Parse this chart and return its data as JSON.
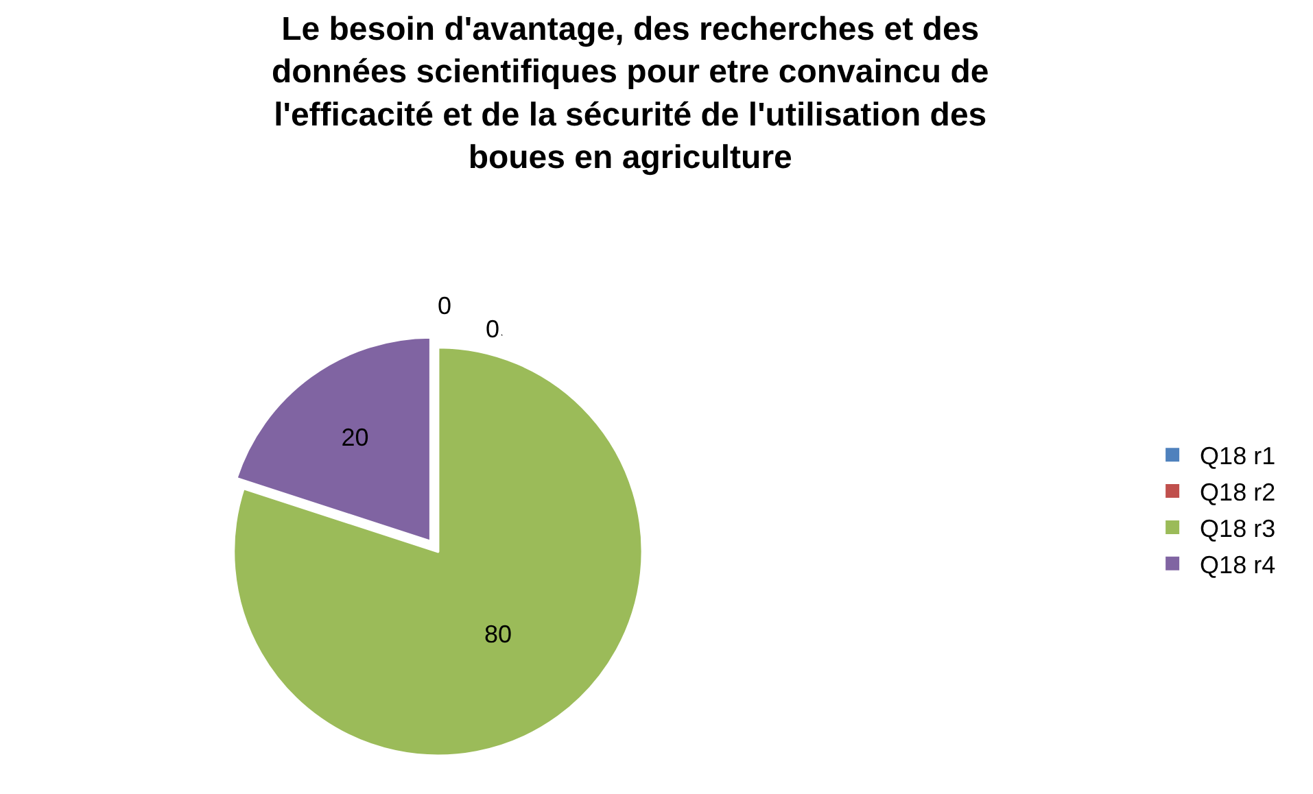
{
  "chart_data": {
    "type": "pie",
    "title": "Le besoin d'avantage, des recherches et des\ndonnées scientifiques pour etre convaincu de\nl'efficacité et de la sécurité de l'utilisation des\nboues en agriculture",
    "categories": [
      "Q18 r1",
      "Q18 r2",
      "Q18 r3",
      "Q18 r4"
    ],
    "values": [
      0,
      0,
      80,
      20
    ],
    "colors": [
      "#4f81bd",
      "#c0504d",
      "#9bbb59",
      "#8064a2"
    ],
    "value_labels": [
      "0",
      "0",
      "80",
      "20"
    ],
    "legend": "right"
  }
}
